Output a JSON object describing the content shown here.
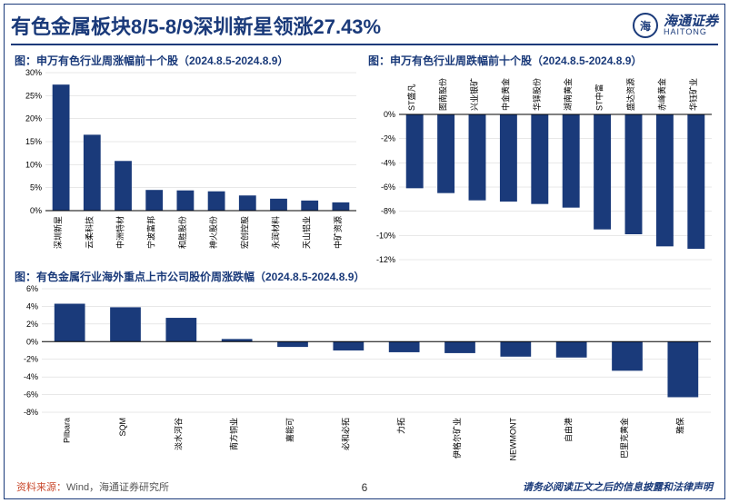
{
  "header": {
    "title": "有色金属板块8/5-8/9深圳新星领涨27.43%",
    "logo_cn": "海通证券",
    "logo_en": "HAITONG"
  },
  "chart1": {
    "title": "图：申万有色行业周涨幅前十个股（2024.8.5-2024.8.9）",
    "type": "bar",
    "categories": [
      "深圳新星",
      "云柔科技",
      "中洲特材",
      "宁波富邦",
      "和胜股份",
      "神火股份",
      "宏创控股",
      "永润材料",
      "天山铝业",
      "中矿资源"
    ],
    "values": [
      27.4,
      16.5,
      10.8,
      4.5,
      4.4,
      4.2,
      3.3,
      2.6,
      2.2,
      1.8
    ],
    "ylim": [
      0,
      30
    ],
    "ytick_step": 5,
    "bar_color": "#1a3a7a",
    "grid_color": "#d0d0d0",
    "axis_color": "#000000",
    "background_color": "#ffffff",
    "label_fontsize": 9,
    "tick_fontsize": 9
  },
  "chart2": {
    "title": "图：申万有色行业周跌幅前十个股（2024.8.5-2024.8.9）",
    "type": "bar",
    "categories": [
      "ST盛凡",
      "图南股份",
      "兴业银矿",
      "中金黄金",
      "华铎股份",
      "湖南黄金",
      "ST中富",
      "盛达资源",
      "赤峰黄金",
      "华钰矿业"
    ],
    "values": [
      -6.1,
      -6.5,
      -7.1,
      -7.2,
      -7.4,
      -7.7,
      -9.5,
      -9.9,
      -10.9,
      -11.1
    ],
    "ylim": [
      -12,
      0
    ],
    "ytick_step": 2,
    "bar_color": "#1a3a7a",
    "grid_color": "#d0d0d0",
    "axis_color": "#000000",
    "background_color": "#ffffff",
    "label_fontsize": 9,
    "tick_fontsize": 9
  },
  "chart3": {
    "title": "图：有色金属行业海外重点上市公司股价周涨跌幅（2024.8.5-2024.8.9）",
    "type": "bar",
    "categories": [
      "Pilbara",
      "SQM",
      "淡水河谷",
      "南方铜业",
      "嘉能可",
      "必和必拓",
      "力拓",
      "伊格尔矿业",
      "NEWMONT",
      "自由港",
      "巴里克黄金",
      "雅保"
    ],
    "values": [
      4.3,
      3.9,
      2.7,
      0.3,
      -0.6,
      -1.0,
      -1.2,
      -1.3,
      -1.7,
      -1.8,
      -3.3,
      -6.3
    ],
    "ylim": [
      -8,
      6
    ],
    "ytick_step": 2,
    "bar_color": "#1a3a7a",
    "grid_color": "#d0d0d0",
    "axis_color": "#000000",
    "background_color": "#ffffff",
    "label_fontsize": 9,
    "tick_fontsize": 9
  },
  "footer": {
    "source_label": "资料来源：",
    "source_text": "Wind，海通证券研究所",
    "page_number": "6",
    "disclaimer": "请务必阅读正文之后的信息披露和法律声明"
  }
}
